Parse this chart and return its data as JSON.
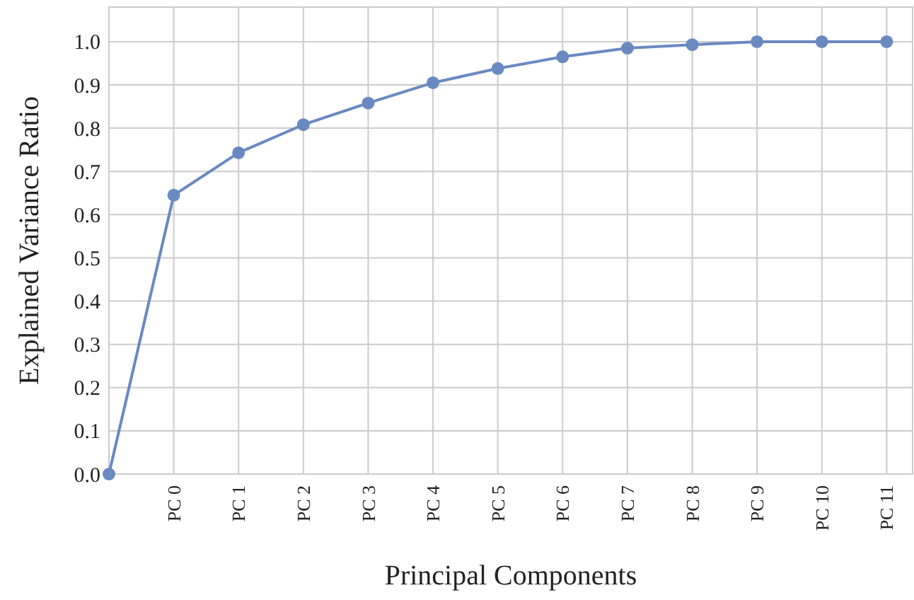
{
  "chart_data": {
    "type": "line",
    "xlabel": "Principal Components",
    "ylabel": "Explained Variance Ratio",
    "categories": [
      null,
      "PC 0",
      "PC 1",
      "PC 2",
      "PC 3",
      "PC 4",
      "PC 5",
      "PC 6",
      "PC 7",
      "PC 8",
      "PC 9",
      "PC 10",
      "PC 11"
    ],
    "series": [
      {
        "color": "#6a89c1",
        "values": [
          0,
          0.645,
          0.743,
          0.808,
          0.858,
          0.905,
          0.938,
          0.965,
          0.985,
          0.993,
          1.0,
          1.0,
          1.0
        ]
      }
    ],
    "ylim": [
      0,
      1.08
    ],
    "yticks": [
      {
        "value": 0,
        "label": "0.0"
      },
      {
        "value": 0.1,
        "label": "0.1"
      },
      {
        "value": 0.2,
        "label": "0.2"
      },
      {
        "value": 0.3,
        "label": "0.3"
      },
      {
        "value": 0.4,
        "label": "0.4"
      },
      {
        "value": 0.5,
        "label": "0.5"
      },
      {
        "value": 0.6,
        "label": "0.6"
      },
      {
        "value": 0.7,
        "label": "0.7"
      },
      {
        "value": 0.8,
        "label": "0.8"
      },
      {
        "value": 0.9,
        "label": "0.9"
      },
      {
        "value": 1.0,
        "label": "1.0"
      }
    ],
    "grid": true,
    "marker": "circle",
    "line_style": "solid"
  }
}
